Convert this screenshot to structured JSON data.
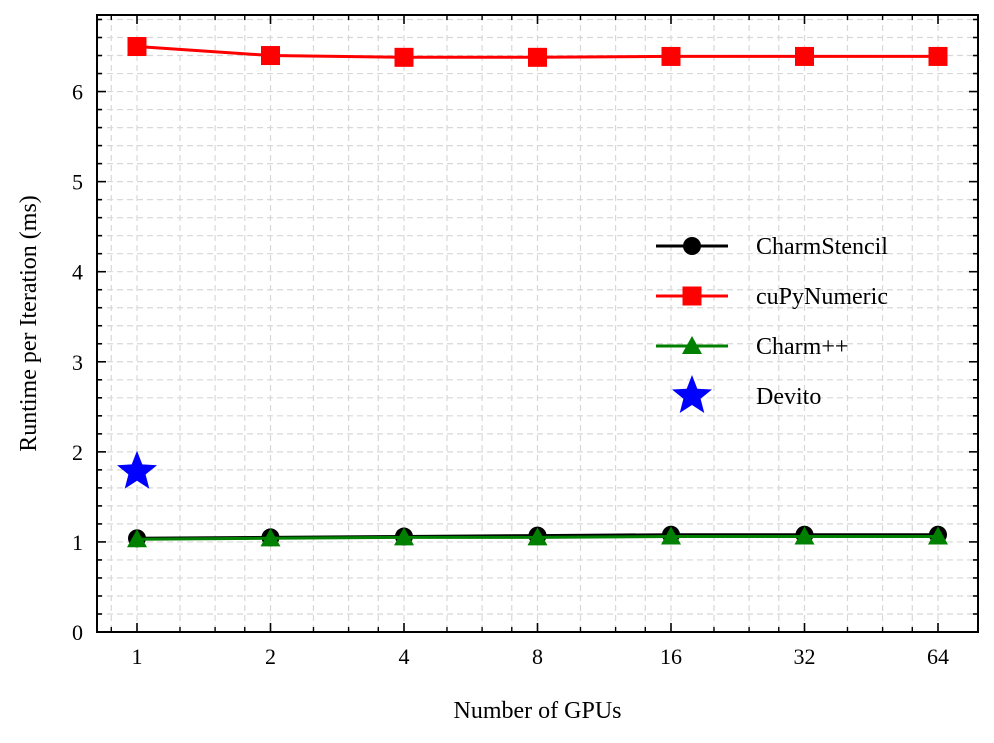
{
  "chart_data": {
    "type": "line",
    "xlabel": "Number of GPUs",
    "ylabel": "Runtime per Iteration (ms)",
    "x_scale": "log2",
    "x": [
      1,
      2,
      4,
      8,
      16,
      32,
      64
    ],
    "x_tick_labels": [
      "1",
      "2",
      "4",
      "8",
      "16",
      "32",
      "64"
    ],
    "ylim": [
      0,
      6.85
    ],
    "y_ticks": [
      0,
      1,
      2,
      3,
      4,
      5,
      6
    ],
    "y_tick_labels": [
      "0",
      "1",
      "2",
      "3",
      "4",
      "5",
      "6"
    ],
    "grid": true,
    "legend_position": "right",
    "series": [
      {
        "name": "CharmStencil",
        "color": "#000000",
        "marker": "circle",
        "values": [
          1.04,
          1.05,
          1.06,
          1.07,
          1.08,
          1.08,
          1.08
        ]
      },
      {
        "name": "cuPyNumeric",
        "color": "#ff0000",
        "marker": "square",
        "values": [
          6.5,
          6.4,
          6.38,
          6.38,
          6.39,
          6.39,
          6.39
        ]
      },
      {
        "name": "Charm++",
        "color": "#008000",
        "marker": "triangle",
        "values": [
          1.03,
          1.04,
          1.05,
          1.05,
          1.06,
          1.06,
          1.06
        ]
      },
      {
        "name": "Devito",
        "color": "#0000ff",
        "marker": "star",
        "x": [
          1
        ],
        "values": [
          1.78
        ]
      }
    ]
  }
}
